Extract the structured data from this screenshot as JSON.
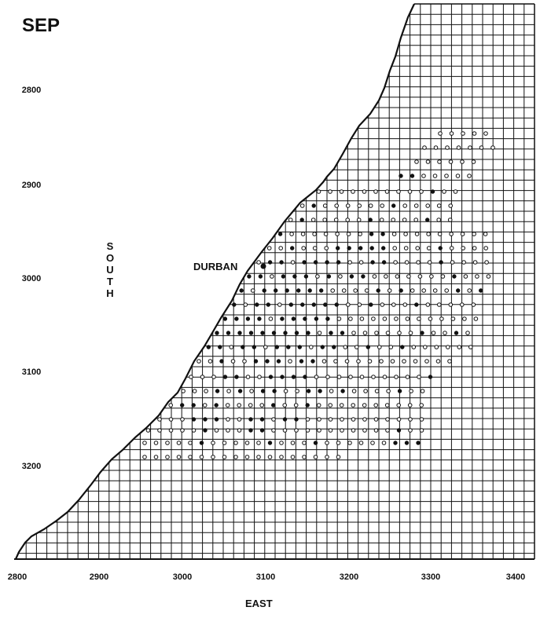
{
  "map": {
    "month_label": "SEP",
    "place_label": "DURBAN",
    "x_axis_label": "EAST",
    "y_axis_label": "SOUTH",
    "x_ticks": [
      "2800",
      "2900",
      "3000",
      "3100",
      "3200",
      "3300",
      "3400"
    ],
    "y_ticks": [
      "2800",
      "2900",
      "3000",
      "3100",
      "3200"
    ],
    "colors": {
      "ink": "#111111",
      "paper": "#ffffff"
    }
  }
}
